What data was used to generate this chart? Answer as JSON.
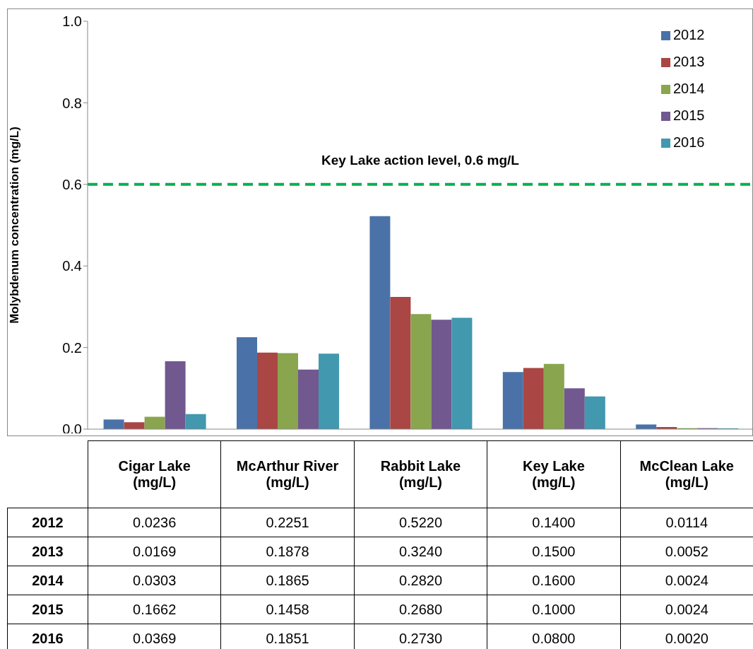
{
  "chart_data": {
    "type": "bar",
    "ylabel": "Molybdenum concentration (mg/L)",
    "categories": [
      "Cigar Lake (mg/L)",
      "McArthur River (mg/L)",
      "Rabbit Lake (mg/L)",
      "Key Lake (mg/L)",
      "McClean Lake (mg/L)"
    ],
    "series": [
      {
        "name": "2012",
        "color": "#4a72a8",
        "values": [
          0.0236,
          0.2251,
          0.522,
          0.14,
          0.0114
        ],
        "value_labels": [
          "0.0236",
          "0.2251",
          "0.5220",
          "0.1400",
          "0.0114"
        ]
      },
      {
        "name": "2013",
        "color": "#aa4643",
        "values": [
          0.0169,
          0.1878,
          0.324,
          0.15,
          0.0052
        ],
        "value_labels": [
          "0.0169",
          "0.1878",
          "0.3240",
          "0.1500",
          "0.0052"
        ]
      },
      {
        "name": "2014",
        "color": "#89a54e",
        "values": [
          0.0303,
          0.1865,
          0.282,
          0.16,
          0.0024
        ],
        "value_labels": [
          "0.0303",
          "0.1865",
          "0.2820",
          "0.1600",
          "0.0024"
        ]
      },
      {
        "name": "2015",
        "color": "#71588f",
        "values": [
          0.1662,
          0.1458,
          0.268,
          0.1,
          0.0024
        ],
        "value_labels": [
          "0.1662",
          "0.1458",
          "0.2680",
          "0.1000",
          "0.0024"
        ]
      },
      {
        "name": "2016",
        "color": "#4198af",
        "values": [
          0.0369,
          0.1851,
          0.273,
          0.08,
          0.002
        ],
        "value_labels": [
          "0.0369",
          "0.1851",
          "0.2730",
          "0.0800",
          "0.0020"
        ]
      }
    ],
    "ylim": [
      0,
      1
    ],
    "yticks": [
      {
        "value": 0,
        "label": "0.0"
      },
      0.2,
      0.4,
      0.6,
      0.8,
      {
        "value": 1,
        "label": "1.0"
      }
    ],
    "ref_lines": [
      {
        "axis": "y",
        "value": 0.6,
        "label": "Key Lake action level, 0.6 mg/L",
        "color": "#00b050",
        "line_style": "dashed"
      }
    ],
    "legend": "top right",
    "grid": false
  }
}
